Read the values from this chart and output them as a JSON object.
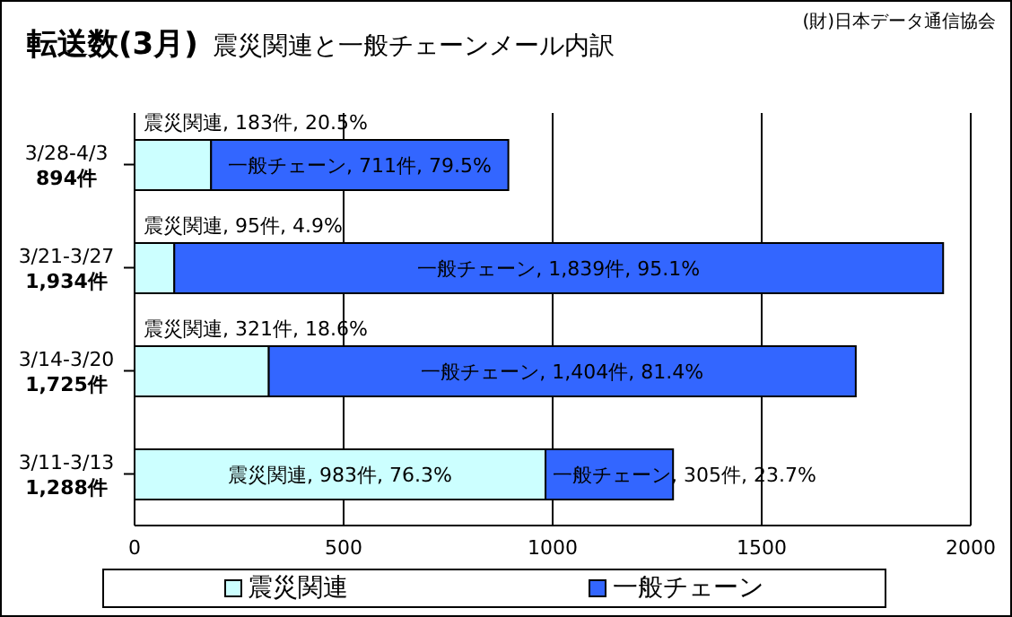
{
  "chart_data": {
    "type": "bar",
    "orientation": "horizontal",
    "stacked": true,
    "title": "転送数(3月)",
    "subtitle": "震災関連と一般チェーンメール内訳",
    "annotations": [
      "(財)日本データ通信協会"
    ],
    "categories": [
      "3/28-4/3\n894件",
      "3/21-3/27\n1,934件",
      "3/14-3/20\n1,725件",
      "3/11-3/13\n1,288件"
    ],
    "series": [
      {
        "name": "震災関連",
        "color": "#ccffff",
        "values": [
          183,
          95,
          321,
          983
        ],
        "value_labels": [
          "震災関連, 183件, 20.5%",
          "震災関連, 95件, 4.9%",
          "震災関連, 321件, 18.6%",
          "震災関連, 983件, 76.3%"
        ]
      },
      {
        "name": "一般チェーン",
        "color": "#3366ff",
        "values": [
          711,
          1839,
          1404,
          305
        ],
        "value_labels": [
          "一般チェーン, 711件, 79.5%",
          "一般チェーン, 1,839件, 95.1%",
          "一般チェーン, 1,404件, 81.4%",
          "一般チェーン, 305件, 23.7%"
        ]
      }
    ],
    "xlim": [
      0,
      2000
    ],
    "xticks": [
      0,
      500,
      1000,
      1500,
      2000
    ],
    "grid": "x",
    "legend": "bottom"
  }
}
